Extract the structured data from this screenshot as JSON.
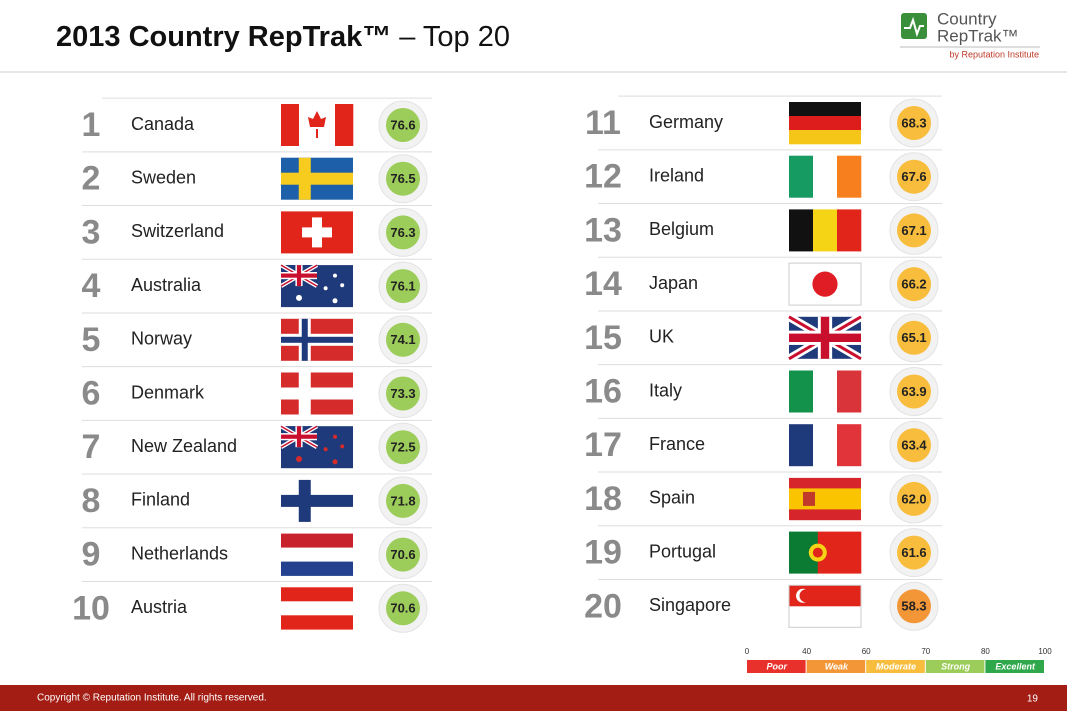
{
  "header": {
    "title_bold": "2013 Country RepTrak™",
    "title_rest": "– Top 20",
    "logo_line1": "Country",
    "logo_line2": "RepTrak™",
    "logo_byline": "by Reputation Institute"
  },
  "columns": [
    {
      "rows": [
        {
          "rank": "1",
          "country": "Canada",
          "score": "76.6",
          "color": "#9ccc5a"
        },
        {
          "rank": "2",
          "country": "Sweden",
          "score": "76.5",
          "color": "#9ccc5a"
        },
        {
          "rank": "3",
          "country": "Switzerland",
          "score": "76.3",
          "color": "#9ccc5a"
        },
        {
          "rank": "4",
          "country": "Australia",
          "score": "76.1",
          "color": "#9ccc5a"
        },
        {
          "rank": "5",
          "country": "Norway",
          "score": "74.1",
          "color": "#9ccc5a"
        },
        {
          "rank": "6",
          "country": "Denmark",
          "score": "73.3",
          "color": "#9ccc5a"
        },
        {
          "rank": "7",
          "country": "New Zealand",
          "score": "72.5",
          "color": "#9ccc5a"
        },
        {
          "rank": "8",
          "country": "Finland",
          "score": "71.8",
          "color": "#9ccc5a"
        },
        {
          "rank": "9",
          "country": "Netherlands",
          "score": "70.6",
          "color": "#9ccc5a"
        },
        {
          "rank": "10",
          "country": "Austria",
          "score": "70.6",
          "color": "#9ccc5a"
        }
      ]
    },
    {
      "rows": [
        {
          "rank": "11",
          "country": "Germany",
          "score": "68.3",
          "color": "#f8bd3c"
        },
        {
          "rank": "12",
          "country": "Ireland",
          "score": "67.6",
          "color": "#f8bd3c"
        },
        {
          "rank": "13",
          "country": "Belgium",
          "score": "67.1",
          "color": "#f8bd3c"
        },
        {
          "rank": "14",
          "country": "Japan",
          "score": "66.2",
          "color": "#f8bd3c"
        },
        {
          "rank": "15",
          "country": "UK",
          "score": "65.1",
          "color": "#f8bd3c"
        },
        {
          "rank": "16",
          "country": "Italy",
          "score": "63.9",
          "color": "#f8bd3c"
        },
        {
          "rank": "17",
          "country": "France",
          "score": "63.4",
          "color": "#f8bd3c"
        },
        {
          "rank": "18",
          "country": "Spain",
          "score": "62.0",
          "color": "#f8bd3c"
        },
        {
          "rank": "19",
          "country": "Portugal",
          "score": "61.6",
          "color": "#f8bd3c"
        },
        {
          "rank": "20",
          "country": "Singapore",
          "score": "58.3",
          "color": "#f39638"
        }
      ]
    }
  ],
  "scale": {
    "ticks": [
      "0",
      "40",
      "60",
      "70",
      "80",
      "100"
    ],
    "bands": [
      {
        "label": "Poor",
        "color": "#e8312a"
      },
      {
        "label": "Weak",
        "color": "#f39638"
      },
      {
        "label": "Moderate",
        "color": "#f8bd3c"
      },
      {
        "label": "Strong",
        "color": "#9ccc5a"
      },
      {
        "label": "Excellent",
        "color": "#2ea84a"
      }
    ]
  },
  "footer": {
    "copyright": "Copyright © Reputation Institute. All rights reserved.",
    "page": "19"
  }
}
